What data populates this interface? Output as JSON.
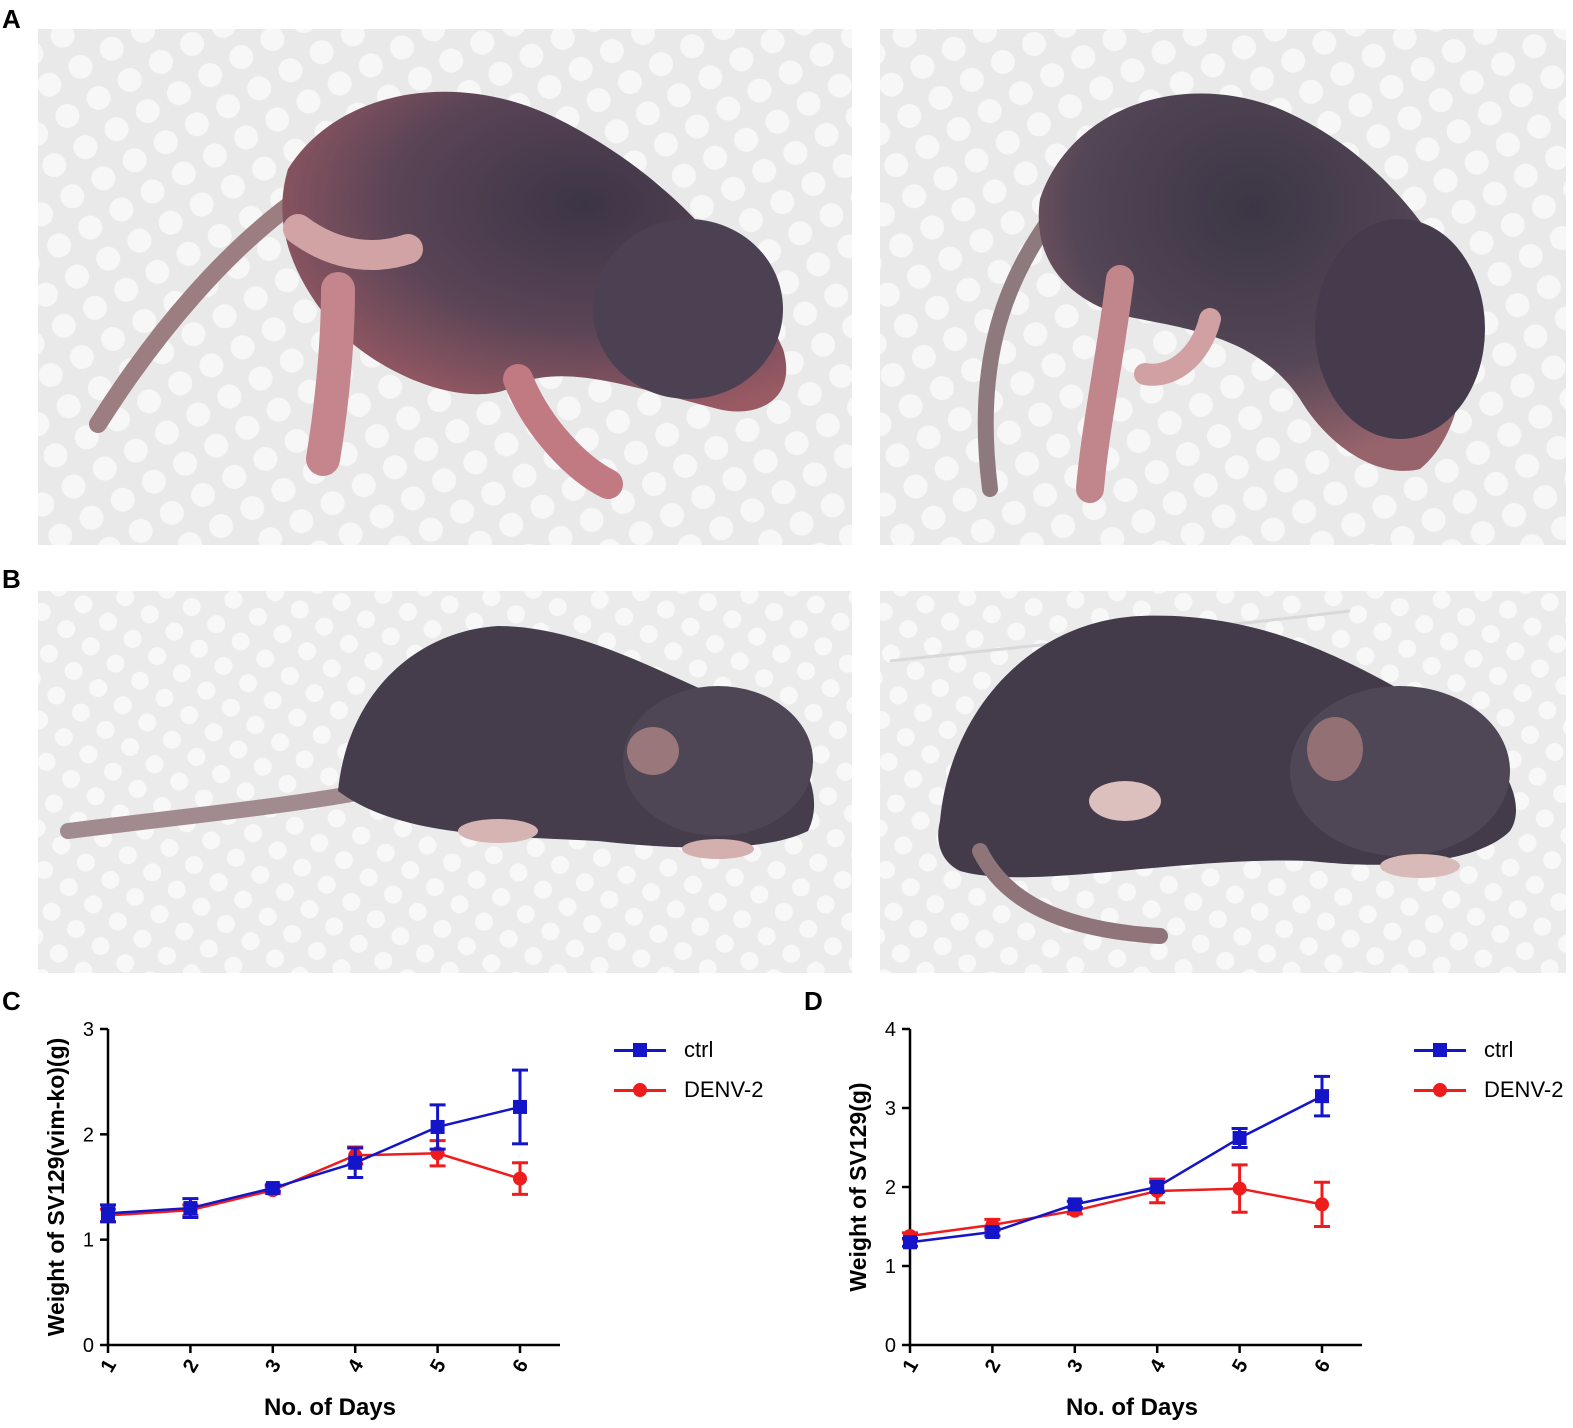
{
  "panels": {
    "A": {
      "letter": "A"
    },
    "B": {
      "letter": "B"
    },
    "C": {
      "letter": "C"
    },
    "D": {
      "letter": "D"
    }
  },
  "colors": {
    "ctrl": "#1414c8",
    "denv": "#ee1c1c",
    "towel": "#eeeeee",
    "mouse_dark": "#4a4252",
    "mouse_pink": "#b9767c"
  },
  "legend": {
    "series": [
      {
        "key": "ctrl",
        "label": "ctrl",
        "marker": "square"
      },
      {
        "key": "denv",
        "label": "DENV-2",
        "marker": "circle"
      }
    ]
  },
  "chart_data": [
    {
      "panel": "C",
      "type": "line",
      "xlabel": "No. of Days",
      "ylabel": "Weight of SV129(vim-ko)(g)",
      "x": [
        1,
        2,
        3,
        4,
        5,
        6
      ],
      "x_ticks": [
        "1",
        "2",
        "3",
        "4",
        "5",
        "6"
      ],
      "y_ticks": [
        "0",
        "1",
        "2",
        "3"
      ],
      "ylim": [
        0,
        3
      ],
      "grid": false,
      "legend_position": "top-right, outside plot",
      "series": [
        {
          "name": "ctrl",
          "values": [
            1.25,
            1.3,
            1.49,
            1.73,
            2.07,
            2.26
          ],
          "errors": [
            0.08,
            0.09,
            0.03,
            0.14,
            0.21,
            0.35
          ]
        },
        {
          "name": "DENV-2",
          "values": [
            1.23,
            1.28,
            1.47,
            1.8,
            1.82,
            1.58
          ],
          "errors": [
            0.06,
            0.05,
            0.03,
            0.08,
            0.12,
            0.15
          ]
        }
      ]
    },
    {
      "panel": "D",
      "type": "line",
      "xlabel": "No. of Days",
      "ylabel": "Weight of SV129(g)",
      "x": [
        1,
        2,
        3,
        4,
        5,
        6
      ],
      "x_ticks": [
        "1",
        "2",
        "3",
        "4",
        "5",
        "6"
      ],
      "y_ticks": [
        "0",
        "1",
        "2",
        "3",
        "4"
      ],
      "ylim": [
        0,
        4
      ],
      "grid": false,
      "legend_position": "top-right, outside plot",
      "series": [
        {
          "name": "ctrl",
          "values": [
            1.3,
            1.43,
            1.78,
            2.0,
            2.62,
            3.15
          ],
          "errors": [
            0.05,
            0.05,
            0.04,
            0.06,
            0.12,
            0.25
          ]
        },
        {
          "name": "DENV-2",
          "values": [
            1.38,
            1.52,
            1.7,
            1.95,
            1.98,
            1.78
          ],
          "errors": [
            0.04,
            0.07,
            0.04,
            0.15,
            0.3,
            0.28
          ]
        }
      ]
    }
  ]
}
